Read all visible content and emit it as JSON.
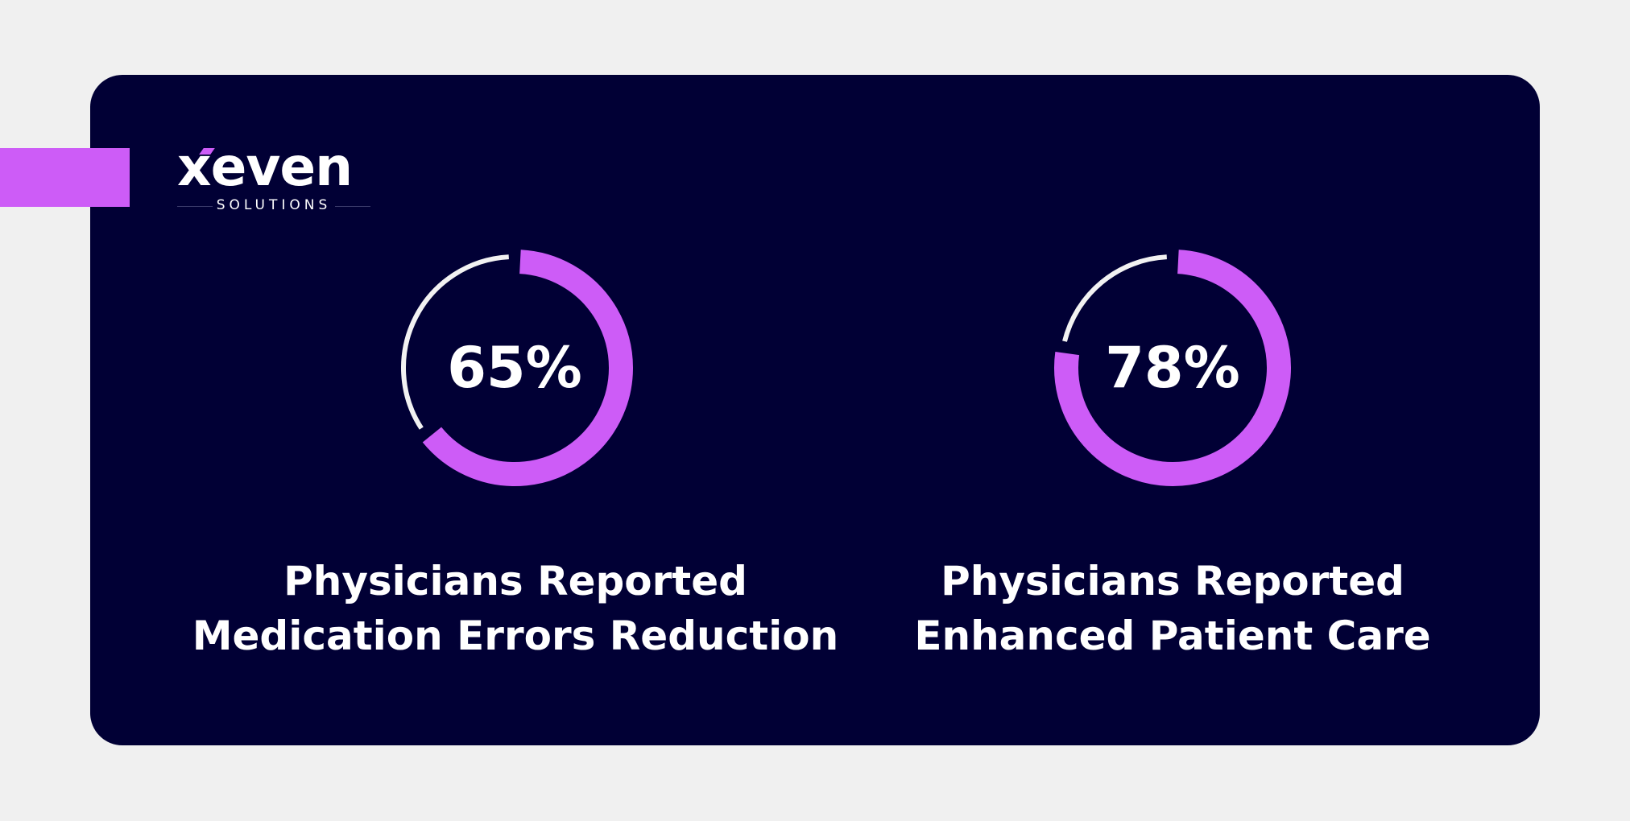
{
  "brand": {
    "name": "xeven",
    "tagline": "SOLUTIONS",
    "accent_color": "#cd5cf7",
    "background_color": "#010035"
  },
  "chart_data": [
    {
      "type": "pie",
      "value_label": "65%",
      "values": [
        65,
        35
      ],
      "caption_line1": "Physicians Reported",
      "caption_line2": "Medication Errors Reduction"
    },
    {
      "type": "pie",
      "value_label": "78%",
      "values": [
        78,
        22
      ],
      "caption_line1": "Physicians Reported",
      "caption_line2": "Enhanced Patient Care"
    }
  ]
}
